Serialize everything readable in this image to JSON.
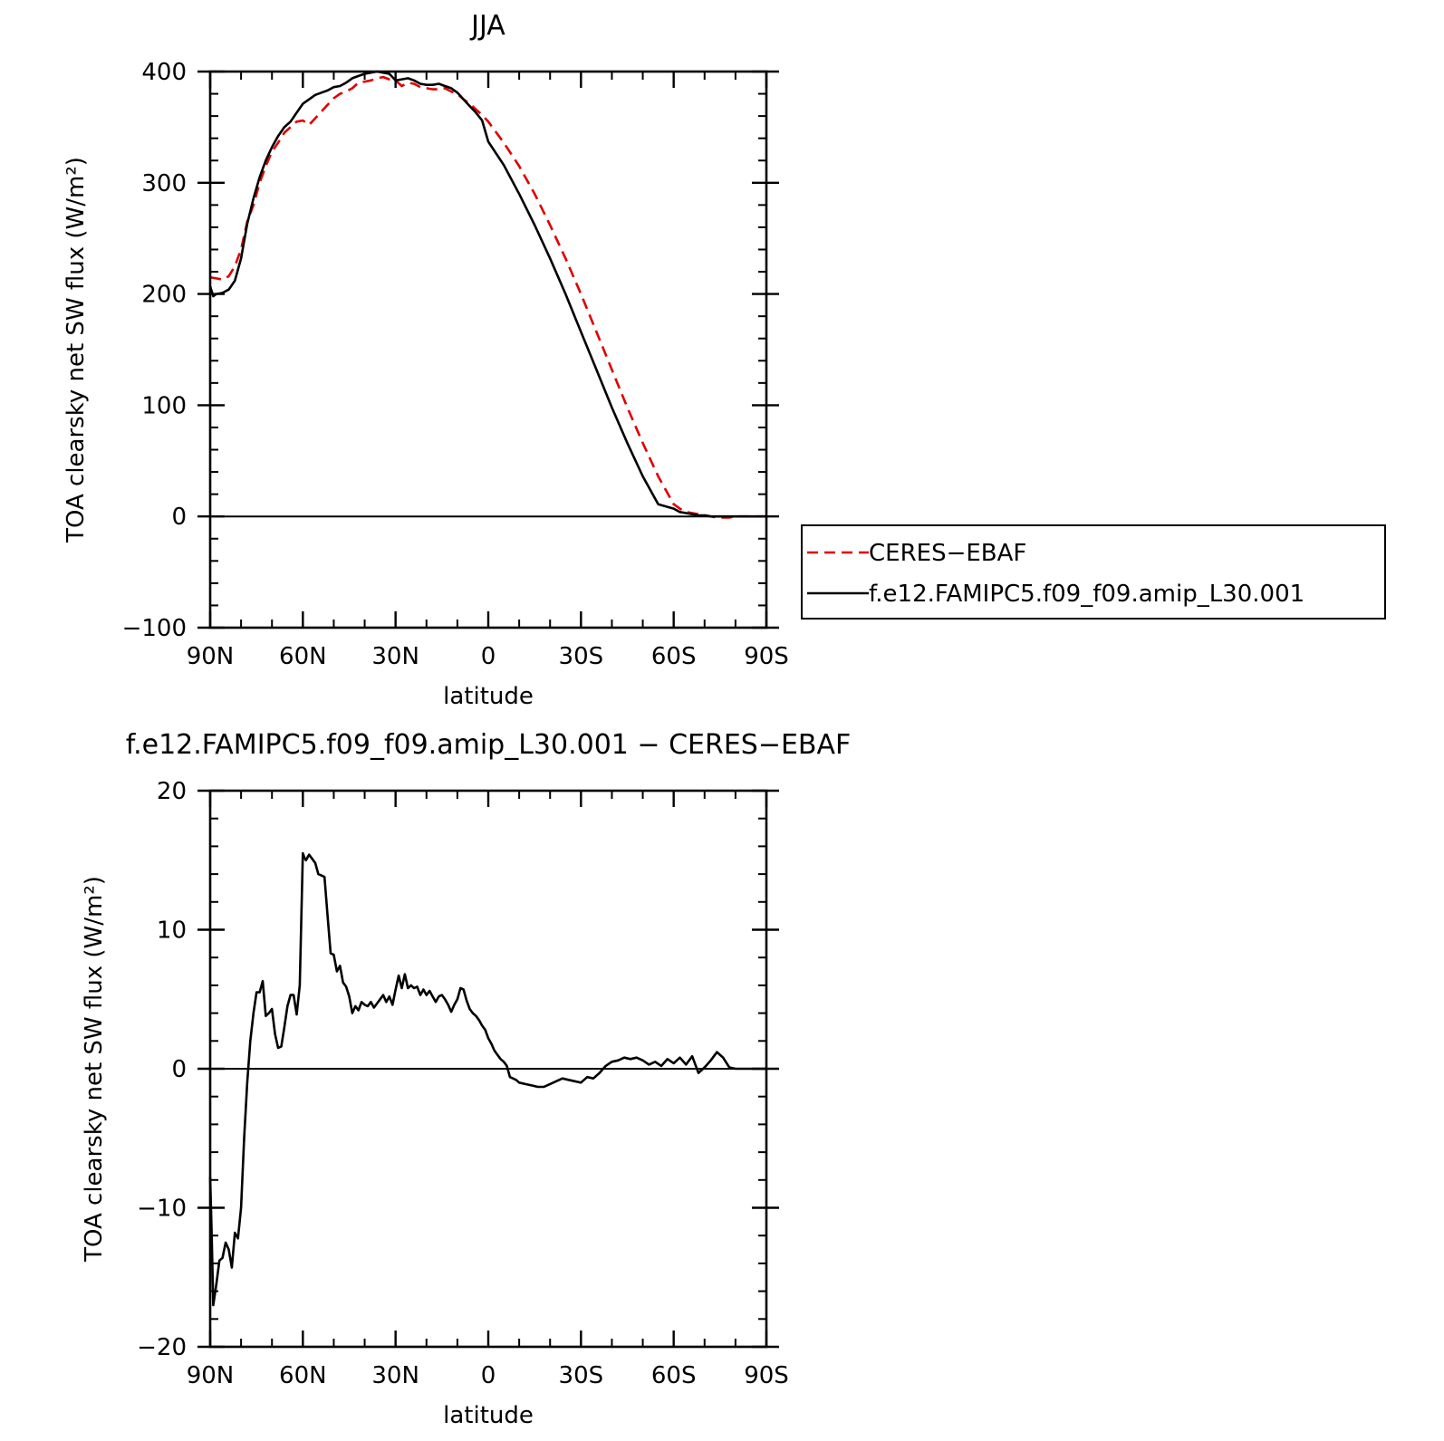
{
  "chart_data": [
    {
      "type": "line",
      "title": "JJA",
      "xlabel": "latitude",
      "ylabel": "TOA clearsky net SW flux (W/m²)",
      "xlim": [
        90,
        -90
      ],
      "ylim": [
        -100,
        400
      ],
      "xticks": [
        {
          "value": 90,
          "label": "90N"
        },
        {
          "value": 60,
          "label": "60N"
        },
        {
          "value": 30,
          "label": "30N"
        },
        {
          "value": 0,
          "label": "0"
        },
        {
          "value": -30,
          "label": "30S"
        },
        {
          "value": -60,
          "label": "60S"
        },
        {
          "value": -90,
          "label": "90S"
        }
      ],
      "yticks": [
        {
          "value": -100,
          "label": "−100"
        },
        {
          "value": 0,
          "label": "0"
        },
        {
          "value": 100,
          "label": "100"
        },
        {
          "value": 200,
          "label": "200"
        },
        {
          "value": 300,
          "label": "300"
        },
        {
          "value": 400,
          "label": "400"
        }
      ],
      "legend": "right",
      "series": [
        {
          "name": "CERES−EBAF",
          "color": "#e00000",
          "dash": "dashed",
          "x": [
            90,
            88,
            86,
            84,
            82,
            80,
            78,
            76,
            74,
            72,
            70,
            68,
            66,
            64,
            62,
            60,
            58,
            56,
            54,
            52,
            50,
            48,
            46,
            44,
            42,
            40,
            38,
            36,
            34,
            32,
            30,
            28,
            26,
            24,
            22,
            20,
            18,
            16,
            14,
            12,
            10,
            8,
            6,
            4,
            2,
            0,
            -5,
            -10,
            -15,
            -20,
            -25,
            -30,
            -35,
            -40,
            -45,
            -50,
            -55,
            -60,
            -62,
            -64,
            -66,
            -68,
            -70,
            -72,
            -74,
            -76,
            -78,
            -80,
            -82,
            -84,
            -86,
            -88,
            -90
          ],
          "y": [
            215,
            214,
            213,
            216,
            225,
            240,
            265,
            280,
            300,
            315,
            328,
            336,
            345,
            350,
            355,
            356,
            352,
            358,
            364,
            370,
            376,
            380,
            382,
            385,
            390,
            391,
            392,
            394,
            395,
            393,
            392,
            387,
            390,
            389,
            386,
            385,
            384,
            384,
            385,
            382,
            380,
            375,
            371,
            366,
            361,
            355,
            336,
            315,
            290,
            262,
            232,
            200,
            166,
            132,
            98,
            66,
            36,
            11,
            7,
            4,
            3,
            2,
            1,
            0,
            -1,
            -1,
            -1,
            0,
            0,
            0,
            0,
            0,
            0
          ]
        },
        {
          "name": "f.e12.FAMIPC5.f09_f09.amip_L30.001",
          "color": "#000000",
          "dash": "solid",
          "x": [
            90,
            89,
            88,
            86,
            84,
            82,
            80,
            78,
            76,
            74,
            72,
            70,
            68,
            66,
            64,
            62,
            60,
            58,
            56,
            54,
            52,
            50,
            48,
            46,
            44,
            42,
            40,
            38,
            36,
            34,
            32,
            30,
            28,
            26,
            24,
            22,
            20,
            18,
            16,
            14,
            12,
            10,
            8,
            6,
            4,
            2,
            0,
            -5,
            -10,
            -15,
            -20,
            -25,
            -30,
            -35,
            -40,
            -45,
            -50,
            -55,
            -60,
            -62,
            -64,
            -66,
            -68,
            -70,
            -72,
            -74,
            -76,
            -78,
            -80,
            -82,
            -84,
            -86,
            -88,
            -90
          ],
          "y": [
            207,
            198,
            200,
            201,
            204,
            212,
            232,
            263,
            286,
            305,
            320,
            332,
            342,
            350,
            355,
            363,
            371,
            375,
            379,
            381,
            383,
            386,
            387,
            390,
            394,
            396,
            398,
            399,
            400,
            399,
            398,
            392,
            393,
            394,
            392,
            389,
            388,
            388,
            389,
            387,
            385,
            381,
            375,
            369,
            363,
            356,
            337,
            316,
            290,
            262,
            232,
            200,
            166,
            132,
            98,
            66,
            36,
            11,
            7,
            4,
            3,
            2,
            1,
            1,
            0,
            0,
            0,
            0,
            0,
            0,
            0,
            0,
            0,
            0
          ]
        }
      ]
    },
    {
      "type": "line",
      "title": "f.e12.FAMIPC5.f09_f09.amip_L30.001 − CERES−EBAF",
      "xlabel": "latitude",
      "ylabel": "TOA clearsky net SW flux (W/m²)",
      "xlim": [
        90,
        -90
      ],
      "ylim": [
        -20,
        20
      ],
      "xticks": [
        {
          "value": 90,
          "label": "90N"
        },
        {
          "value": 60,
          "label": "60N"
        },
        {
          "value": 30,
          "label": "30N"
        },
        {
          "value": 0,
          "label": "0"
        },
        {
          "value": -30,
          "label": "30S"
        },
        {
          "value": -60,
          "label": "60S"
        },
        {
          "value": -90,
          "label": "90S"
        }
      ],
      "yticks": [
        {
          "value": -20,
          "label": "−20"
        },
        {
          "value": -10,
          "label": "−10"
        },
        {
          "value": 0,
          "label": "0"
        },
        {
          "value": 10,
          "label": "10"
        },
        {
          "value": 20,
          "label": "20"
        }
      ],
      "series": [
        {
          "color": "#000000",
          "dash": "solid",
          "x": [
            90,
            89.5,
            89,
            88,
            87,
            86,
            85,
            84,
            83,
            82,
            81,
            80,
            79,
            78,
            77,
            76,
            75,
            74,
            73,
            72,
            71,
            70,
            69,
            68,
            67,
            66,
            65,
            64,
            63,
            62,
            61,
            60,
            59.5,
            59,
            58,
            57,
            56,
            55,
            54,
            53,
            52,
            51,
            50,
            49,
            48,
            47,
            46,
            45,
            44,
            43,
            42,
            41,
            40,
            39,
            38,
            37,
            36,
            35,
            34,
            33,
            32,
            31,
            30,
            29,
            28,
            27,
            26,
            25,
            24,
            23,
            22,
            21,
            20,
            19,
            18,
            17,
            16,
            15,
            14,
            13,
            12,
            11,
            10,
            9,
            8,
            7,
            6,
            5,
            4,
            3,
            2,
            1,
            0,
            -1,
            -2,
            -3,
            -4,
            -5,
            -6,
            -7,
            -8,
            -9,
            -10,
            -12,
            -14,
            -16,
            -18,
            -20,
            -22,
            -24,
            -26,
            -28,
            -30,
            -32,
            -34,
            -36,
            -38,
            -40,
            -42,
            -44,
            -46,
            -48,
            -50,
            -52,
            -54,
            -56,
            -58,
            -60,
            -62,
            -64,
            -66,
            -68,
            -70,
            -72,
            -74,
            -76,
            -78,
            -80,
            -82,
            -84,
            -86,
            -88,
            -90
          ],
          "y": [
            -7.8,
            -12,
            -17,
            -15.5,
            -13.8,
            -13.6,
            -12.5,
            -13,
            -14.3,
            -11.8,
            -12.2,
            -10,
            -5,
            -1,
            2,
            4,
            5.5,
            5.5,
            6.3,
            3.8,
            4,
            4.3,
            2.5,
            1.5,
            1.6,
            3,
            4.5,
            5.3,
            5.3,
            3.9,
            6,
            15.5,
            15.2,
            15,
            15.4,
            15.1,
            14.8,
            14,
            13.9,
            13.8,
            11,
            8.3,
            8.2,
            7,
            7.4,
            6.2,
            5.9,
            5.2,
            4,
            4.5,
            4.2,
            4.8,
            4.6,
            4.5,
            4.8,
            4.4,
            4.7,
            5,
            5.3,
            4.8,
            5.2,
            4.6,
            5.7,
            6.7,
            5.8,
            6.8,
            5.8,
            6,
            5.8,
            5.9,
            5.3,
            5.7,
            5.3,
            5.6,
            5.2,
            4.8,
            5.2,
            5.3,
            5,
            4.6,
            4.1,
            4.6,
            5,
            5.8,
            5.7,
            4.9,
            4.3,
            4,
            3.8,
            3.5,
            3.1,
            2.8,
            2.2,
            1.8,
            1.3,
            1,
            0.7,
            0.5,
            0.2,
            -0.6,
            -0.7,
            -0.8,
            -1,
            -1.1,
            -1.2,
            -1.3,
            -1.3,
            -1.1,
            -0.9,
            -0.7,
            -0.8,
            -0.9,
            -1,
            -0.6,
            -0.7,
            -0.3,
            0.2,
            0.5,
            0.6,
            0.8,
            0.7,
            0.8,
            0.6,
            0.3,
            0.5,
            0.2,
            0.7,
            0.4,
            0.8,
            0.3,
            0.9,
            -0.3,
            0.1,
            0.6,
            1.2,
            0.8,
            0.1,
            0,
            0,
            0,
            0,
            0,
            0
          ]
        }
      ]
    }
  ]
}
